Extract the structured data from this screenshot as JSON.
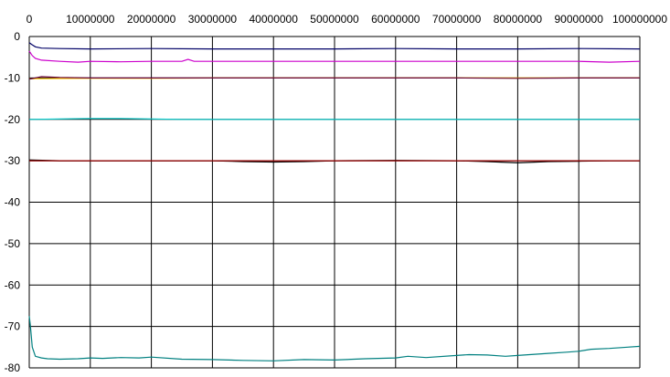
{
  "chart_data": {
    "type": "line",
    "title": "",
    "xlabel": "",
    "ylabel": "",
    "xlim": [
      0,
      100000000
    ],
    "ylim": [
      -80,
      0
    ],
    "x_ticks": [
      0,
      10000000,
      20000000,
      30000000,
      40000000,
      50000000,
      60000000,
      70000000,
      80000000,
      90000000,
      100000000
    ],
    "x_tick_labels": [
      "0",
      "10000000",
      "20000000",
      "30000000",
      "40000000",
      "50000000",
      "60000000",
      "70000000",
      "80000000",
      "90000000",
      "100000000"
    ],
    "y_ticks": [
      0,
      -10,
      -20,
      -30,
      -40,
      -50,
      -60,
      -70,
      -80
    ],
    "y_tick_labels": [
      "0",
      "-10",
      "-20",
      "-30",
      "-40",
      "-50",
      "-60",
      "-70",
      "-80"
    ],
    "x_axis_position": "top",
    "grid": true,
    "legend": "none",
    "series": [
      {
        "color": "#000066",
        "x": [
          0,
          500000,
          1000000,
          2000000,
          5000000,
          10000000,
          20000000,
          30000000,
          40000000,
          50000000,
          60000000,
          70000000,
          80000000,
          90000000,
          100000000
        ],
        "y": [
          -1.5,
          -2.0,
          -2.5,
          -2.8,
          -2.9,
          -3.0,
          -2.9,
          -3.0,
          -3.0,
          -3.0,
          -2.9,
          -3.0,
          -3.0,
          -2.9,
          -3.0
        ]
      },
      {
        "color": "#cc00cc",
        "x": [
          0,
          500000,
          1000000,
          2000000,
          5000000,
          8000000,
          10000000,
          15000000,
          20000000,
          25000000,
          26000000,
          27000000,
          30000000,
          40000000,
          50000000,
          60000000,
          70000000,
          80000000,
          90000000,
          95000000,
          100000000
        ],
        "y": [
          -3.5,
          -4.6,
          -5.3,
          -5.7,
          -6.0,
          -6.2,
          -6.0,
          -6.1,
          -6.0,
          -6.0,
          -5.5,
          -6.0,
          -6.0,
          -6.0,
          -6.0,
          -6.0,
          -6.0,
          -6.0,
          -6.0,
          -6.2,
          -6.0
        ]
      },
      {
        "color": "#ffcc00",
        "x": [
          0,
          10000000,
          20000000,
          30000000,
          40000000,
          50000000,
          60000000,
          70000000,
          80000000,
          90000000,
          100000000
        ],
        "y": [
          -10.2,
          -10.1,
          -10.1,
          -10.0,
          -10.0,
          -10.0,
          -10.0,
          -10.0,
          -10.0,
          -10.0,
          -10.0
        ]
      },
      {
        "color": "#660033",
        "x": [
          0,
          2000000,
          5000000,
          10000000,
          20000000,
          30000000,
          40000000,
          50000000,
          60000000,
          70000000,
          80000000,
          90000000,
          100000000
        ],
        "y": [
          -10.3,
          -9.7,
          -9.9,
          -10.0,
          -10.0,
          -10.0,
          -10.0,
          -10.0,
          -10.0,
          -10.0,
          -10.1,
          -10.0,
          -10.0
        ]
      },
      {
        "color": "#00cccc",
        "x": [
          0,
          5000000,
          10000000,
          15000000,
          20000000,
          25000000,
          30000000,
          40000000,
          50000000,
          60000000,
          70000000,
          80000000,
          90000000,
          100000000
        ],
        "y": [
          -20.0,
          -19.9,
          -19.8,
          -19.8,
          -19.9,
          -20.0,
          -20.0,
          -20.0,
          -20.0,
          -20.0,
          -20.0,
          -20.0,
          -20.0,
          -20.0
        ]
      },
      {
        "color": "#000000",
        "x": [
          0,
          5000000,
          10000000,
          20000000,
          30000000,
          35000000,
          40000000,
          45000000,
          50000000,
          60000000,
          70000000,
          75000000,
          80000000,
          85000000,
          90000000,
          95000000,
          100000000
        ],
        "y": [
          -29.8,
          -30.0,
          -30.0,
          -30.0,
          -30.0,
          -30.2,
          -30.3,
          -30.2,
          -30.0,
          -29.9,
          -30.0,
          -30.2,
          -30.5,
          -30.2,
          -30.1,
          -30.0,
          -30.0
        ]
      },
      {
        "color": "#990000",
        "x": [
          0,
          10000000,
          20000000,
          30000000,
          40000000,
          50000000,
          60000000,
          70000000,
          80000000,
          90000000,
          100000000
        ],
        "y": [
          -30.0,
          -30.0,
          -30.0,
          -30.0,
          -30.0,
          -30.0,
          -30.0,
          -30.0,
          -30.0,
          -30.0,
          -30.0
        ]
      },
      {
        "color": "#008080",
        "x": [
          0,
          200000,
          500000,
          1000000,
          2000000,
          3000000,
          5000000,
          8000000,
          10000000,
          12000000,
          15000000,
          18000000,
          20000000,
          25000000,
          30000000,
          35000000,
          40000000,
          45000000,
          50000000,
          55000000,
          60000000,
          62000000,
          65000000,
          70000000,
          72000000,
          75000000,
          78000000,
          80000000,
          85000000,
          88000000,
          90000000,
          92000000,
          95000000,
          98000000,
          100000000
        ],
        "y": [
          -67.5,
          -70.0,
          -75.0,
          -77.2,
          -77.6,
          -77.8,
          -77.9,
          -77.8,
          -77.6,
          -77.7,
          -77.5,
          -77.6,
          -77.4,
          -77.9,
          -78.0,
          -78.2,
          -78.3,
          -78.0,
          -78.1,
          -77.8,
          -77.6,
          -77.2,
          -77.5,
          -77.0,
          -76.8,
          -76.9,
          -77.2,
          -77.0,
          -76.5,
          -76.2,
          -76.0,
          -75.5,
          -75.3,
          -75.0,
          -74.8
        ]
      }
    ]
  }
}
